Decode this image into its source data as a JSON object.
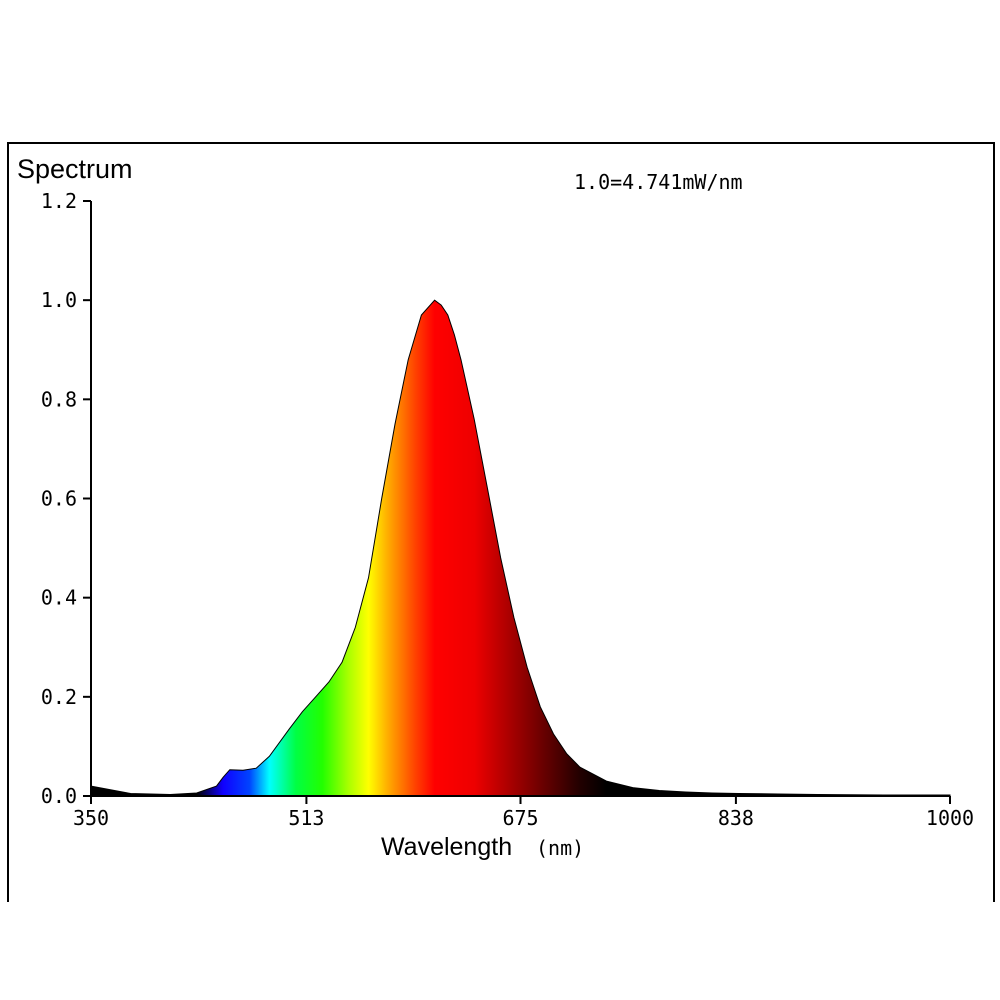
{
  "chart_data": {
    "type": "area",
    "title": "Spectrum",
    "annotation": "1.0=4.741mW/nm",
    "xlabel": "Wavelength",
    "xunit": "(nm)",
    "xlim": [
      350,
      1000
    ],
    "ylim": [
      0,
      1.2
    ],
    "xticks": [
      350,
      513,
      675,
      838,
      1000
    ],
    "xtick_labels": [
      "350",
      "513",
      "675",
      "838",
      "1000"
    ],
    "yticks": [
      0,
      0.2,
      0.4,
      0.6,
      0.8,
      1.0,
      1.2
    ],
    "ytick_labels": [
      "0.0",
      "0.2",
      "0.4",
      "0.6",
      "0.8",
      "1.0",
      "1.2"
    ],
    "grid": false,
    "fill": "wavelength-colored spectrum gradient",
    "x": [
      350,
      380,
      410,
      430,
      445,
      450,
      455,
      465,
      475,
      485,
      500,
      510,
      520,
      530,
      540,
      550,
      560,
      570,
      580,
      590,
      600,
      610,
      615,
      620,
      625,
      630,
      640,
      650,
      660,
      670,
      680,
      690,
      700,
      710,
      720,
      740,
      760,
      780,
      800,
      820,
      840,
      870,
      900,
      950,
      1000
    ],
    "y": [
      0.02,
      0.005,
      0.003,
      0.006,
      0.02,
      0.038,
      0.053,
      0.052,
      0.056,
      0.08,
      0.135,
      0.17,
      0.2,
      0.23,
      0.27,
      0.34,
      0.44,
      0.6,
      0.75,
      0.88,
      0.97,
      1.0,
      0.99,
      0.97,
      0.93,
      0.88,
      0.76,
      0.62,
      0.48,
      0.36,
      0.26,
      0.18,
      0.125,
      0.085,
      0.058,
      0.03,
      0.017,
      0.011,
      0.008,
      0.006,
      0.005,
      0.004,
      0.003,
      0.002,
      0.002
    ]
  }
}
